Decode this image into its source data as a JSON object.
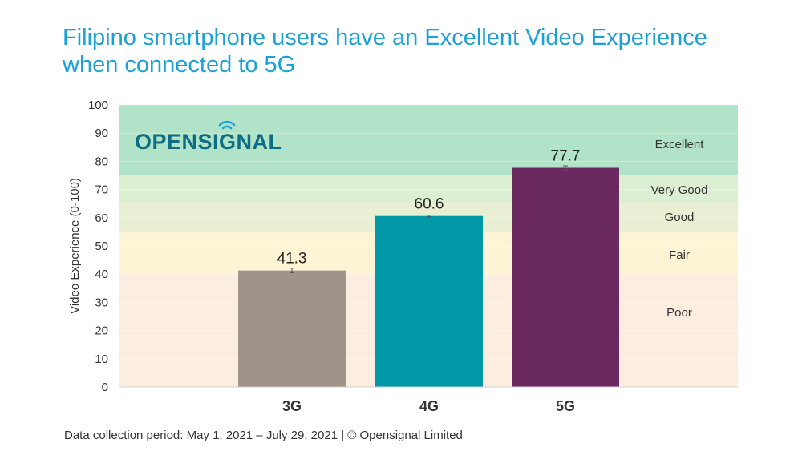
{
  "title": "Filipino smartphone users have an Excellent Video Experience when connected to 5G",
  "footer": "Data collection period: May 1, 2021 – July 29, 2021 | © Opensignal Limited",
  "logo": {
    "text_before": "OPENS",
    "text_i": "I",
    "text_after": "GNAL",
    "color": "#0c6d86",
    "accent_color": "#1ba1d6"
  },
  "chart_data": {
    "type": "bar",
    "categories": [
      "3G",
      "4G",
      "5G"
    ],
    "values": [
      41.3,
      60.6,
      77.7
    ],
    "value_labels": [
      "41.3",
      "60.6",
      "77.7"
    ],
    "error_bars": [
      [
        40.5,
        42.1
      ],
      [
        60.3,
        60.9
      ],
      [
        77.0,
        78.4
      ]
    ],
    "bar_colors": [
      "#9e948a",
      "#0097a7",
      "#6b2a5f"
    ],
    "ylabel": "Video Experience (0-100)",
    "ylim": [
      0,
      100
    ],
    "yticks": [
      0,
      10,
      20,
      30,
      40,
      50,
      60,
      70,
      80,
      90,
      100
    ],
    "bands": [
      {
        "label": "Poor",
        "from": 0,
        "to": 40,
        "color": "#fcede1"
      },
      {
        "label": "Fair",
        "from": 40,
        "to": 55,
        "color": "#fdf4d6"
      },
      {
        "label": "Good",
        "from": 55,
        "to": 65,
        "color": "#e9efd2"
      },
      {
        "label": "Very Good",
        "from": 65,
        "to": 75,
        "color": "#dcefd3"
      },
      {
        "label": "Excellent",
        "from": 75,
        "to": 100,
        "color": "#b0e3c7"
      }
    ]
  }
}
